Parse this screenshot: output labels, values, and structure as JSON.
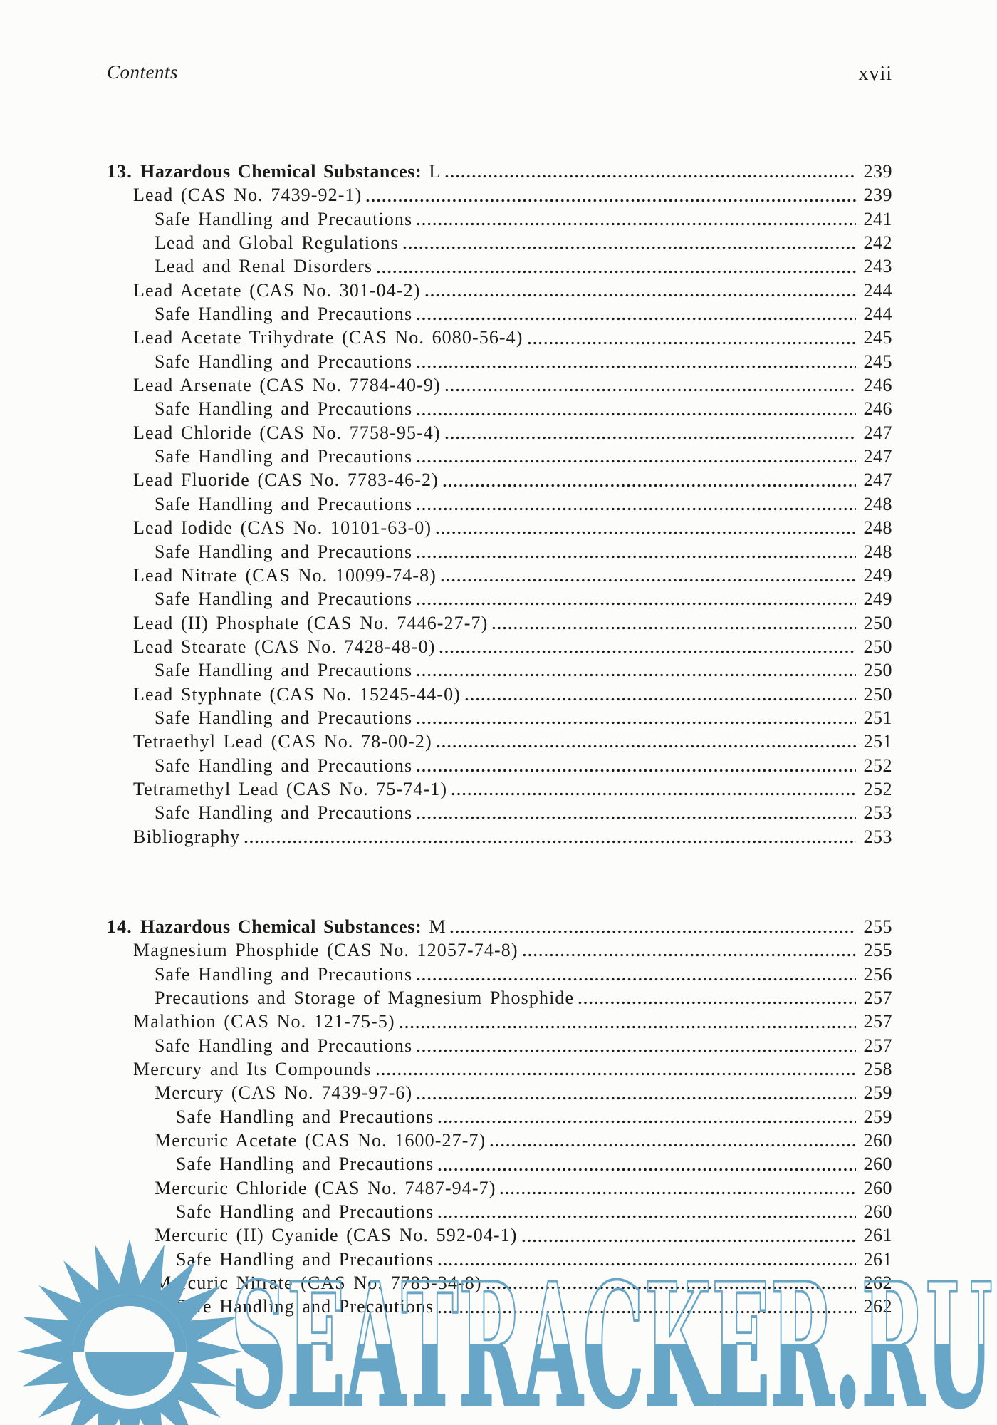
{
  "header": {
    "left": "Contents",
    "right_page_roman": "xvii"
  },
  "watermark": {
    "text": "SEATRACKER.RU",
    "color": "#68a6c8"
  },
  "toc": {
    "chapters": [
      {
        "number": "13.",
        "title_bold": "Hazardous Chemical Substances:",
        "title_tail": " L",
        "page": "239",
        "entries": [
          {
            "label": "Lead (CAS No. 7439-92-1)",
            "page": "239",
            "level": 1
          },
          {
            "label": "Safe Handling and Precautions",
            "page": "241",
            "level": 2
          },
          {
            "label": "Lead and Global Regulations",
            "page": "242",
            "level": 2
          },
          {
            "label": "Lead and Renal Disorders",
            "page": "243",
            "level": 2
          },
          {
            "label": "Lead Acetate (CAS No. 301-04-2)",
            "page": "244",
            "level": 1
          },
          {
            "label": "Safe Handling and Precautions",
            "page": "244",
            "level": 2
          },
          {
            "label": "Lead Acetate Trihydrate (CAS No. 6080-56-4)",
            "page": "245",
            "level": 1
          },
          {
            "label": "Safe Handling and Precautions",
            "page": "245",
            "level": 2
          },
          {
            "label": "Lead Arsenate (CAS No. 7784-40-9)",
            "page": "246",
            "level": 1
          },
          {
            "label": "Safe Handling and Precautions",
            "page": "246",
            "level": 2
          },
          {
            "label": "Lead Chloride (CAS No. 7758-95-4)",
            "page": "247",
            "level": 1
          },
          {
            "label": "Safe Handling and Precautions",
            "page": "247",
            "level": 2
          },
          {
            "label": "Lead Fluoride (CAS No. 7783-46-2)",
            "page": "247",
            "level": 1
          },
          {
            "label": "Safe Handling and Precautions",
            "page": "248",
            "level": 2
          },
          {
            "label": "Lead Iodide (CAS No. 10101-63-0)",
            "page": "248",
            "level": 1
          },
          {
            "label": "Safe Handling and Precautions",
            "page": "248",
            "level": 2
          },
          {
            "label": "Lead Nitrate (CAS No. 10099-74-8)",
            "page": "249",
            "level": 1
          },
          {
            "label": "Safe Handling and Precautions",
            "page": "249",
            "level": 2
          },
          {
            "label": "Lead (II) Phosphate (CAS No. 7446-27-7)",
            "page": "250",
            "level": 1
          },
          {
            "label": "Lead Stearate (CAS No. 7428-48-0)",
            "page": "250",
            "level": 1
          },
          {
            "label": "Safe Handling and Precautions",
            "page": "250",
            "level": 2
          },
          {
            "label": "Lead Styphnate (CAS No. 15245-44-0)",
            "page": "250",
            "level": 1
          },
          {
            "label": "Safe Handling and Precautions",
            "page": "251",
            "level": 2
          },
          {
            "label": "Tetraethyl Lead (CAS No. 78-00-2)",
            "page": "251",
            "level": 1
          },
          {
            "label": "Safe Handling and Precautions",
            "page": "252",
            "level": 2
          },
          {
            "label": "Tetramethyl Lead (CAS No. 75-74-1)",
            "page": "252",
            "level": 1
          },
          {
            "label": "Safe Handling and Precautions",
            "page": "253",
            "level": 2
          },
          {
            "label": "Bibliography",
            "page": "253",
            "level": 1
          }
        ]
      },
      {
        "number": "14.",
        "title_bold": "Hazardous Chemical Substances:",
        "title_tail": " M",
        "page": "255",
        "entries": [
          {
            "label": "Magnesium Phosphide (CAS No. 12057-74-8)",
            "page": "255",
            "level": 1
          },
          {
            "label": "Safe Handling and Precautions",
            "page": "256",
            "level": 2
          },
          {
            "label": "Precautions and Storage of Magnesium Phosphide",
            "page": "257",
            "level": 2
          },
          {
            "label": "Malathion (CAS No. 121-75-5)",
            "page": "257",
            "level": 1
          },
          {
            "label": "Safe Handling and Precautions",
            "page": "257",
            "level": 2
          },
          {
            "label": "Mercury and Its Compounds",
            "page": "258",
            "level": 1
          },
          {
            "label": "Mercury (CAS No. 7439-97-6)",
            "page": "259",
            "level": 2
          },
          {
            "label": "Safe Handling and Precautions",
            "page": "259",
            "level": 3
          },
          {
            "label": "Mercuric Acetate (CAS No. 1600-27-7)",
            "page": "260",
            "level": 2
          },
          {
            "label": "Safe Handling and Precautions",
            "page": "260",
            "level": 3
          },
          {
            "label": "Mercuric Chloride (CAS No. 7487-94-7)",
            "page": "260",
            "level": 2
          },
          {
            "label": "Safe Handling and Precautions",
            "page": "260",
            "level": 3
          },
          {
            "label": "Mercuric (II) Cyanide (CAS No. 592-04-1)",
            "page": "261",
            "level": 2
          },
          {
            "label": "Safe Handling and Precautions",
            "page": "261",
            "level": 3
          },
          {
            "label": "Mercuric Nitrate (CAS No. 7783-34-8)",
            "page": "262",
            "level": 2
          },
          {
            "label": "Safe Handling and Precautions",
            "page": "262",
            "level": 3
          }
        ]
      }
    ]
  }
}
